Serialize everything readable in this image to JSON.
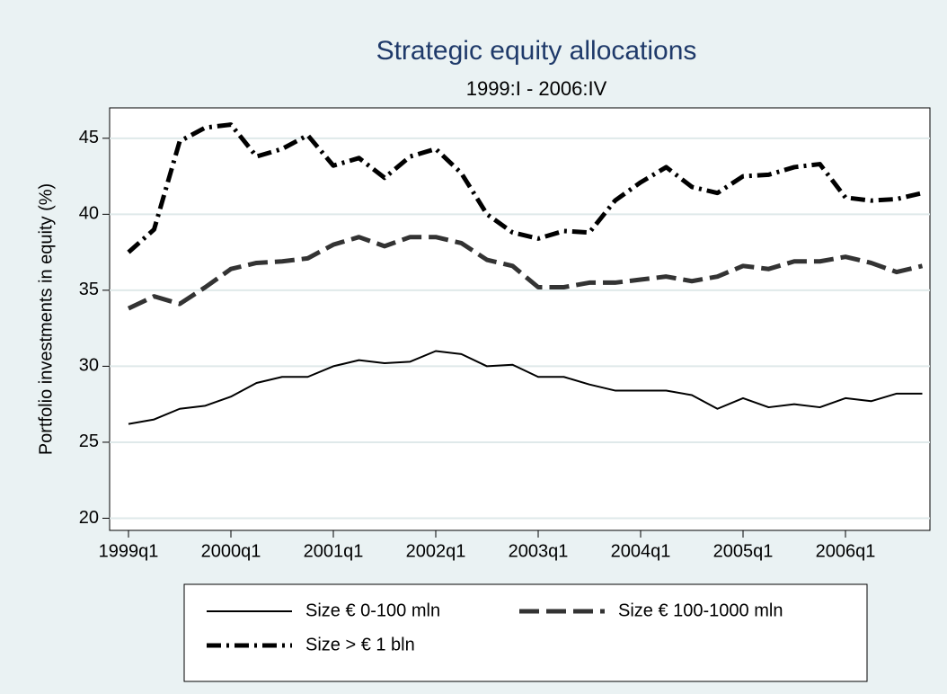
{
  "chart_data": {
    "type": "line",
    "title": "Strategic equity allocations",
    "subtitle": "1999:I - 2006:IV",
    "y_label": "Portfolio investments in equity (%)",
    "categories": [
      "1999q1",
      null,
      null,
      null,
      "2000q1",
      null,
      null,
      null,
      "2001q1",
      null,
      null,
      null,
      "2002q1",
      null,
      null,
      null,
      "2003q1",
      null,
      null,
      null,
      "2004q1",
      null,
      null,
      null,
      "2005q1",
      null,
      null,
      null,
      "2006q1",
      null,
      null,
      null
    ],
    "series": [
      {
        "name": "Size € 0-100 mln",
        "color": "#000000",
        "line_style": "solid",
        "values": [
          26.2,
          26.5,
          27.2,
          27.4,
          28.0,
          28.9,
          29.3,
          29.3,
          30.0,
          30.4,
          30.2,
          30.3,
          31.0,
          30.8,
          30.0,
          30.1,
          29.3,
          29.3,
          28.8,
          28.4,
          28.4,
          28.4,
          28.1,
          27.2,
          27.9,
          27.3,
          27.5,
          27.3,
          27.9,
          27.7,
          28.2,
          28.2
        ]
      },
      {
        "name": "Size € 100-1000 mln",
        "color": "#333333",
        "line_style": "dash",
        "values": [
          33.8,
          34.6,
          34.1,
          35.2,
          36.4,
          36.8,
          36.9,
          37.1,
          38.0,
          38.5,
          37.9,
          38.5,
          38.5,
          38.1,
          37.0,
          36.6,
          35.2,
          35.2,
          35.5,
          35.5,
          35.7,
          35.9,
          35.6,
          35.9,
          36.6,
          36.4,
          36.9,
          36.9,
          37.2,
          36.8,
          36.2,
          36.6
        ]
      },
      {
        "name": "Size > € 1 bln",
        "color": "#000000",
        "line_style": "dashdot",
        "values": [
          37.5,
          39.0,
          44.8,
          45.7,
          45.9,
          43.8,
          44.3,
          45.2,
          43.2,
          43.7,
          42.4,
          43.8,
          44.3,
          42.7,
          40.0,
          38.8,
          38.4,
          38.9,
          38.8,
          40.9,
          42.1,
          43.1,
          41.8,
          41.4,
          42.5,
          42.6,
          43.1,
          43.3,
          41.1,
          40.9,
          41.0,
          41.4
        ]
      }
    ],
    "ylim": [
      19.2,
      47
    ],
    "yticks": [
      20,
      25,
      30,
      35,
      40,
      45
    ],
    "grid": true,
    "legend_position": "bottom"
  }
}
